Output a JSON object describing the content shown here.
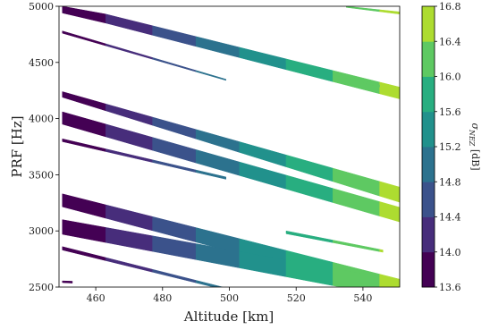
{
  "chart_data": {
    "type": "heatmap",
    "title": "",
    "xlabel": "Altitude [km]",
    "ylabel": "PRF [Hz]",
    "xlim": [
      449,
      551
    ],
    "ylim": [
      2500,
      5000
    ],
    "xticks": [
      460,
      480,
      500,
      520,
      540
    ],
    "yticks": [
      2500,
      3000,
      3500,
      4000,
      4500,
      5000
    ],
    "grid": false,
    "colorbar": {
      "label_main": "σ",
      "label_sub": "NEZ",
      "label_unit": " [dB]",
      "range": [
        13.6,
        16.8
      ],
      "ticks": [
        "13.6",
        "14.0",
        "14.4",
        "14.8",
        "15.2",
        "15.6",
        "16.0",
        "16.4",
        "16.8"
      ],
      "colors": [
        "#440154",
        "#472d7b",
        "#3b528b",
        "#2c728e",
        "#21918c",
        "#28ae80",
        "#5ec962",
        "#addc30",
        "#fde725"
      ]
    },
    "bands": [
      {
        "x": [
          450,
          463
        ],
        "top": [
          5000,
          4930
        ],
        "bottom": [
          4940,
          4850
        ]
      },
      {
        "x": [
          463,
          551
        ],
        "top": [
          4930,
          4280
        ],
        "bottom": [
          4850,
          4175
        ]
      },
      {
        "x": [
          450,
          499
        ],
        "top": [
          4780,
          4350
        ],
        "bottom": [
          4760,
          4340
        ]
      },
      {
        "x": [
          517,
          545
        ],
        "top": [
          4520,
          4300
        ],
        "bottom": [
          4500,
          4280
        ]
      },
      {
        "x": [
          450,
          551
        ],
        "top": [
          4240,
          3390
        ],
        "bottom": [
          4190,
          3255
        ]
      },
      {
        "x": [
          450,
          551
        ],
        "top": [
          4060,
          3210
        ],
        "bottom": [
          3950,
          3080
        ]
      },
      {
        "x": [
          450,
          499
        ],
        "top": [
          3820,
          3480
        ],
        "bottom": [
          3795,
          3460
        ]
      },
      {
        "x": [
          450,
          551
        ],
        "top": [
          3330,
          2570
        ],
        "bottom": [
          3215,
          2420
        ]
      },
      {
        "x": [
          450,
          551
        ],
        "top": [
          3100,
          2560
        ],
        "bottom": [
          2970,
          2400
        ]
      },
      {
        "x": [
          517,
          546
        ],
        "top": [
          3000,
          2830
        ],
        "bottom": [
          2975,
          2810
        ]
      },
      {
        "x": [
          450,
          498
        ],
        "top": [
          2860,
          2500
        ],
        "bottom": [
          2830,
          2480
        ]
      },
      {
        "x": [
          450,
          453
        ],
        "top": [
          2555,
          2552
        ],
        "bottom": [
          2540,
          2535
        ]
      },
      {
        "x": [
          535,
          551
        ],
        "top": [
          5000,
          4950
        ],
        "bottom": [
          4990,
          4930
        ]
      }
    ],
    "color_bins": [
      {
        "x": [
          449,
          463
        ],
        "value": 13.8
      },
      {
        "x": [
          463,
          477
        ],
        "value": 14.2
      },
      {
        "x": [
          477,
          490
        ],
        "value": 14.6
      },
      {
        "x": [
          490,
          503
        ],
        "value": 15.0
      },
      {
        "x": [
          503,
          517
        ],
        "value": 15.4
      },
      {
        "x": [
          517,
          531
        ],
        "value": 15.8
      },
      {
        "x": [
          531,
          545
        ],
        "value": 16.2
      },
      {
        "x": [
          545,
          551
        ],
        "value": 16.6
      }
    ]
  }
}
